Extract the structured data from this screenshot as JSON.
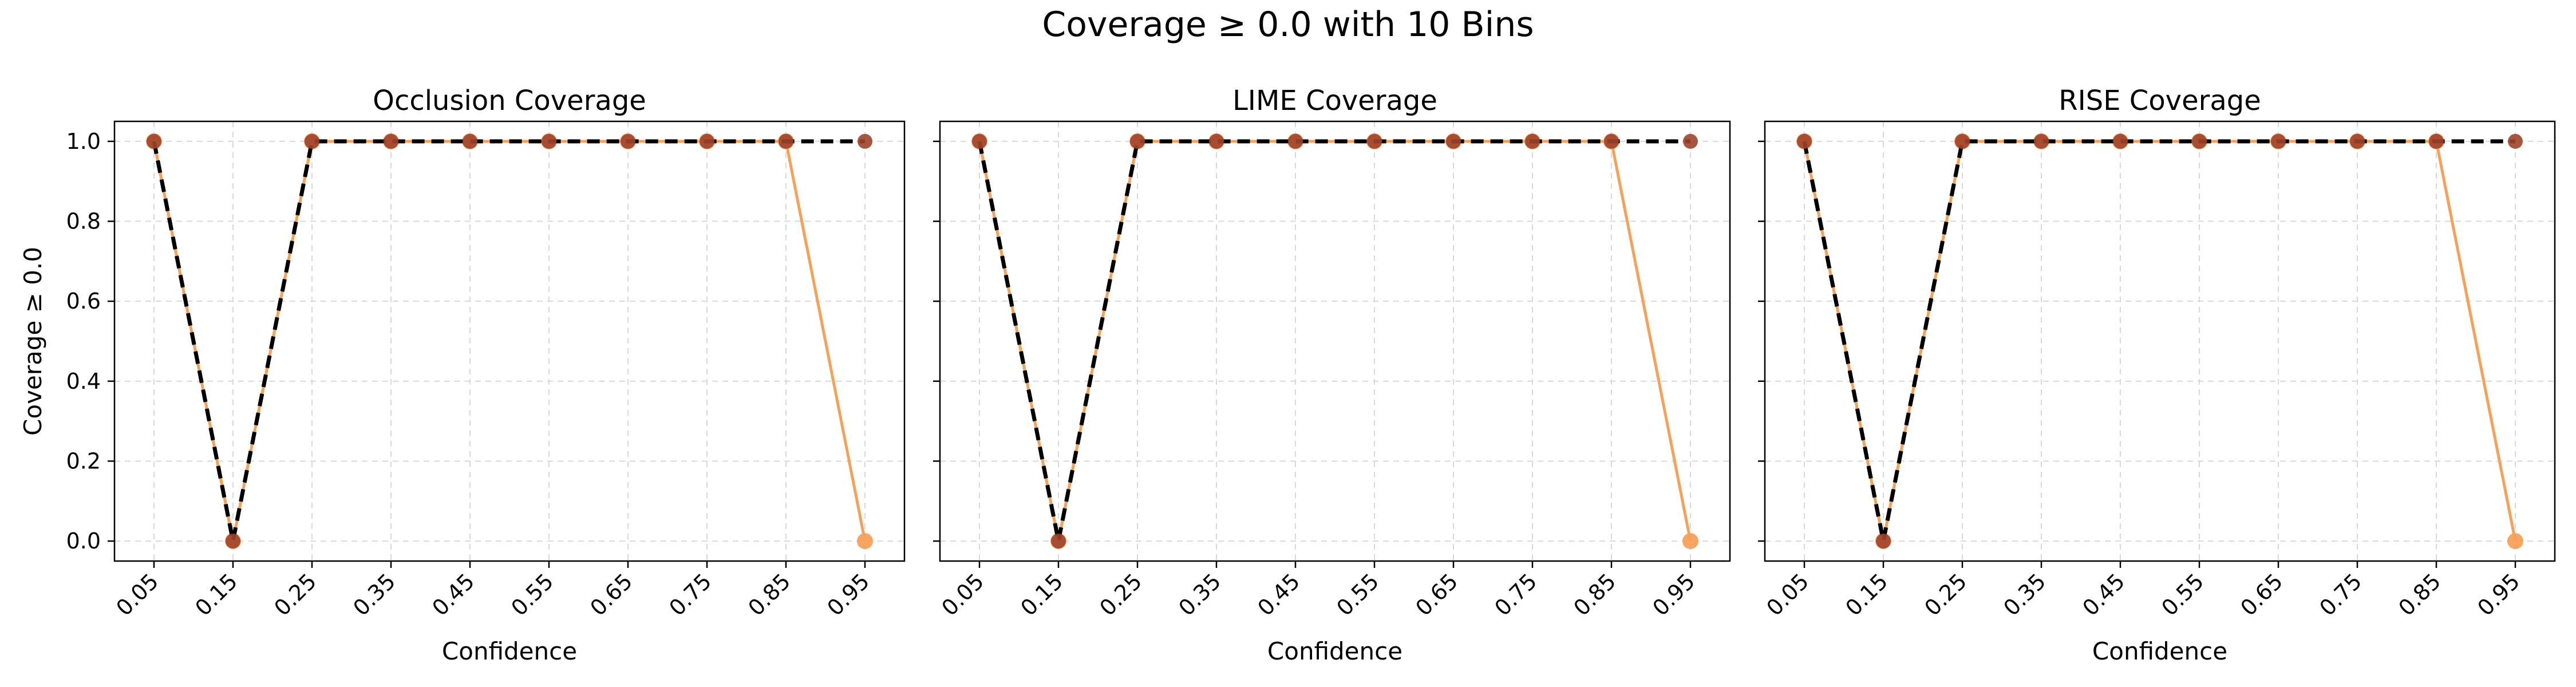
{
  "figure": {
    "title": "Coverage ≥ 0.0 with 10 Bins"
  },
  "colors": {
    "orange_series": "#f5a15a",
    "ideal_line": "#000000",
    "overlap_marker": "#a0442c",
    "grid": "#d9d9d9"
  },
  "chart_data": [
    {
      "type": "line",
      "title": "Occlusion Coverage",
      "xlabel": "Confidence",
      "ylabel": "Coverage ≥ 0.0",
      "categories": [
        "0.05",
        "0.15",
        "0.25",
        "0.35",
        "0.45",
        "0.55",
        "0.65",
        "0.75",
        "0.85",
        "0.95"
      ],
      "x": [
        0.05,
        0.15,
        0.25,
        0.35,
        0.45,
        0.55,
        0.65,
        0.75,
        0.85,
        0.95
      ],
      "yticks": [
        "0.0",
        "0.2",
        "0.4",
        "0.6",
        "0.8",
        "1.0"
      ],
      "ylim": [
        -0.05,
        1.05
      ],
      "grid": true,
      "series": [
        {
          "style": "solid-orange-markers",
          "values": [
            1.0,
            0.0,
            1.0,
            1.0,
            1.0,
            1.0,
            1.0,
            1.0,
            1.0,
            0.0
          ]
        },
        {
          "style": "dashed-black-markers",
          "values": [
            1.0,
            0.0,
            1.0,
            1.0,
            1.0,
            1.0,
            1.0,
            1.0,
            1.0,
            1.0
          ]
        }
      ]
    },
    {
      "type": "line",
      "title": "LIME Coverage",
      "xlabel": "Confidence",
      "ylabel": "",
      "categories": [
        "0.05",
        "0.15",
        "0.25",
        "0.35",
        "0.45",
        "0.55",
        "0.65",
        "0.75",
        "0.85",
        "0.95"
      ],
      "x": [
        0.05,
        0.15,
        0.25,
        0.35,
        0.45,
        0.55,
        0.65,
        0.75,
        0.85,
        0.95
      ],
      "yticks": [],
      "ylim": [
        -0.05,
        1.05
      ],
      "grid": true,
      "series": [
        {
          "style": "solid-orange-markers",
          "values": [
            1.0,
            0.0,
            1.0,
            1.0,
            1.0,
            1.0,
            1.0,
            1.0,
            1.0,
            0.0
          ]
        },
        {
          "style": "dashed-black-markers",
          "values": [
            1.0,
            0.0,
            1.0,
            1.0,
            1.0,
            1.0,
            1.0,
            1.0,
            1.0,
            1.0
          ]
        }
      ]
    },
    {
      "type": "line",
      "title": "RISE Coverage",
      "xlabel": "Confidence",
      "ylabel": "",
      "categories": [
        "0.05",
        "0.15",
        "0.25",
        "0.35",
        "0.45",
        "0.55",
        "0.65",
        "0.75",
        "0.85",
        "0.95"
      ],
      "x": [
        0.05,
        0.15,
        0.25,
        0.35,
        0.45,
        0.55,
        0.65,
        0.75,
        0.85,
        0.95
      ],
      "yticks": [],
      "ylim": [
        -0.05,
        1.05
      ],
      "grid": true,
      "series": [
        {
          "style": "solid-orange-markers",
          "values": [
            1.0,
            0.0,
            1.0,
            1.0,
            1.0,
            1.0,
            1.0,
            1.0,
            1.0,
            0.0
          ]
        },
        {
          "style": "dashed-black-markers",
          "values": [
            1.0,
            0.0,
            1.0,
            1.0,
            1.0,
            1.0,
            1.0,
            1.0,
            1.0,
            1.0
          ]
        }
      ]
    }
  ]
}
